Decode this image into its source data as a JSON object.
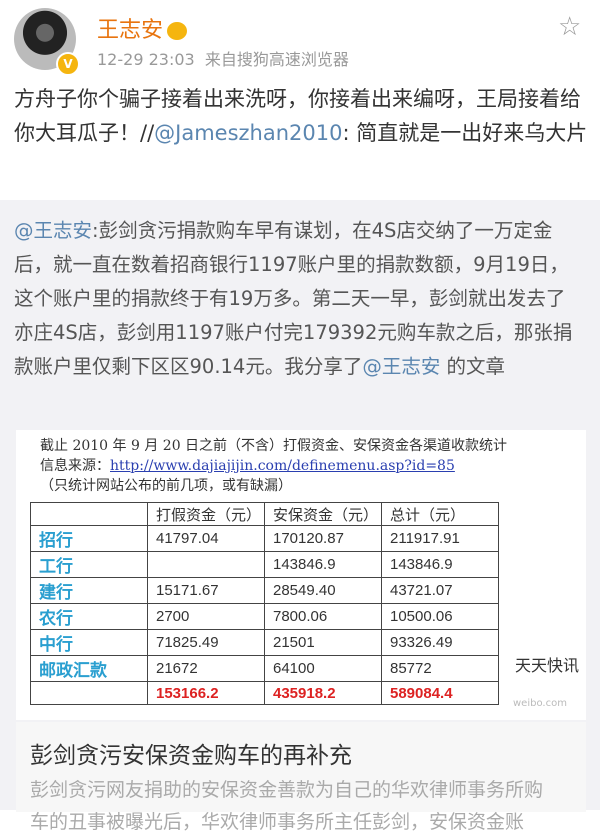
{
  "post": {
    "author": "王志安",
    "time": "12-29 23:03",
    "source": "来自搜狗高速浏览器",
    "text_before": "方舟子你个骗子接着出来洗呀，你接着出来编呀，王局接着给你大耳瓜子！//",
    "mention": "@Jameszhan2010",
    "text_after": ": 简直就是一出好来乌大片"
  },
  "repost": {
    "mention": "@王志安",
    "text": ":彭剑贪污捐款购车早有谋划，在4S店交纳了一万定金后，就一直在数着招商银行1197账户里的捐款数额，9月19日，这个账户里的捐款终于有19万多。第二天一早，彭剑就出发去了亦庄4S店，彭剑用1197账户付完179392元购车款之后，那张捐款账户里仅剩下区区90.14元。我分享了",
    "mention2": "@王志安",
    "text_end": " 的文章"
  },
  "image": {
    "caption1": "截止 2010 年 9 月 20 日之前（不含）打假资金、安保资金各渠道收款统计",
    "caption2_label": "信息来源：",
    "caption2_url": "http://www.dajiajijin.com/definemenu.asp?id=85",
    "caption3": "（只统计网站公布的前几项，或有缺漏）",
    "headers": [
      "",
      "打假资金（元）",
      "安保资金（元）",
      "总计（元）"
    ],
    "rows": [
      [
        "招行",
        "41797.04",
        "170120.87",
        "211917.91"
      ],
      [
        "工行",
        "",
        "143846.9",
        "143846.9"
      ],
      [
        "建行",
        "15171.67",
        "28549.40",
        "43721.07"
      ],
      [
        "农行",
        "2700",
        "7800.06",
        "10500.06"
      ],
      [
        "中行",
        "71825.49",
        "21501",
        "93326.49"
      ],
      [
        "邮政汇款",
        "21672",
        "64100",
        "85772"
      ],
      [
        "",
        "153166.2",
        "435918.2",
        "589084.4"
      ]
    ]
  },
  "article": {
    "title": "彭剑贪污安保资金购车的再补充",
    "desc1": "彭剑贪污网友捐助的安保资金善款为自己的华欢律师事务所购",
    "desc2": "车的丑事被曝光后，华欢律师事务所主任彭剑，安保资金账"
  },
  "watermark": "天天快讯",
  "colors": {
    "name": "#e8740f",
    "link": "#5b86b0",
    "total": "#dd2222"
  }
}
